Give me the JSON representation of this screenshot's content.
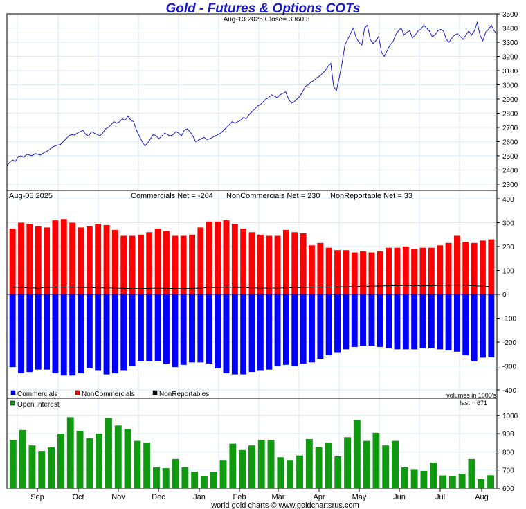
{
  "chart_data": [
    {
      "type": "line",
      "title": "Gold - Futures & Options COTs",
      "subtitle": "Aug-13  2025   Close= 3360.3",
      "ylim": [
        2280,
        3500
      ],
      "y_ticks": [
        2300,
        2400,
        2500,
        2600,
        2700,
        2800,
        2900,
        3000,
        3100,
        3200,
        3300,
        3400,
        3500
      ],
      "grid": true,
      "series": [
        {
          "color": "#1a1acc",
          "values": [
            2430,
            2455,
            2470,
            2460,
            2495,
            2500,
            2490,
            2510,
            2505,
            2500,
            2515,
            2510,
            2505,
            2520,
            2530,
            2540,
            2560,
            2570,
            2575,
            2580,
            2600,
            2620,
            2640,
            2650,
            2645,
            2660,
            2670,
            2680,
            2650,
            2640,
            2670,
            2660,
            2650,
            2640,
            2660,
            2690,
            2700,
            2720,
            2740,
            2730,
            2740,
            2760,
            2750,
            2780,
            2750,
            2740,
            2680,
            2640,
            2600,
            2570,
            2590,
            2620,
            2650,
            2640,
            2620,
            2640,
            2660,
            2650,
            2640,
            2650,
            2670,
            2660,
            2640,
            2680,
            2690,
            2670,
            2640,
            2600,
            2610,
            2620,
            2630,
            2615,
            2620,
            2630,
            2640,
            2650,
            2660,
            2680,
            2700,
            2720,
            2740,
            2730,
            2740,
            2750,
            2770,
            2760,
            2790,
            2810,
            2830,
            2850,
            2860,
            2880,
            2900,
            2910,
            2930,
            2920,
            2910,
            2930,
            2940,
            2950,
            2900,
            2870,
            2880,
            2900,
            2920,
            2950,
            2990,
            3000,
            3020,
            3030,
            3050,
            3060,
            3080,
            3100,
            3130,
            3150,
            2990,
            2960,
            3050,
            3150,
            3280,
            3320,
            3360,
            3400,
            3330,
            3300,
            3280,
            3400,
            3420,
            3320,
            3290,
            3310,
            3340,
            3230,
            3200,
            3240,
            3280,
            3300,
            3350,
            3380,
            3400,
            3350,
            3370,
            3380,
            3330,
            3350,
            3380,
            3390,
            3420,
            3400,
            3380,
            3340,
            3350,
            3380,
            3390,
            3380,
            3320,
            3300,
            3330,
            3350,
            3360,
            3340,
            3320,
            3350,
            3380,
            3350,
            3380,
            3440,
            3350,
            3310,
            3370,
            3390,
            3420,
            3380,
            3360
          ]
        }
      ]
    },
    {
      "type": "bar",
      "header_left": "Aug-05  2025",
      "header_labels": [
        "Commercials Net = -264",
        "NonCommercials Net = 230",
        "NonReportable Net = 33"
      ],
      "ylim": [
        -400,
        400
      ],
      "y_ticks": [
        -400,
        -300,
        -200,
        -100,
        0,
        100,
        200,
        300,
        400
      ],
      "grid": true,
      "legend_position": "bottom-left",
      "footnote": "volumes in 1000's",
      "series": [
        {
          "name": "Commercials",
          "color": "#0000ff",
          "values": [
            -305,
            -330,
            -325,
            -315,
            -315,
            -330,
            -340,
            -340,
            -330,
            -310,
            -320,
            -335,
            -330,
            -320,
            -300,
            -280,
            -280,
            -280,
            -290,
            -305,
            -295,
            -285,
            -285,
            -290,
            -310,
            -330,
            -335,
            -335,
            -325,
            -320,
            -315,
            -300,
            -295,
            -300,
            -290,
            -285,
            -270,
            -255,
            -245,
            -230,
            -220,
            -215,
            -215,
            -220,
            -225,
            -230,
            -230,
            -230,
            -225,
            -225,
            -230,
            -235,
            -240,
            -255,
            -280,
            -265,
            -264
          ]
        },
        {
          "name": "NonCommercials",
          "color": "#ff0000",
          "values": [
            275,
            300,
            295,
            285,
            280,
            310,
            315,
            300,
            280,
            285,
            295,
            290,
            270,
            245,
            245,
            250,
            260,
            275,
            265,
            245,
            245,
            250,
            280,
            305,
            305,
            310,
            295,
            275,
            260,
            250,
            245,
            245,
            270,
            260,
            255,
            205,
            215,
            195,
            185,
            185,
            175,
            180,
            175,
            180,
            195,
            195,
            200,
            190,
            195,
            195,
            205,
            215,
            245,
            220,
            215,
            225,
            230
          ]
        },
        {
          "name": "NonReportables",
          "color": "#000000",
          "values": [
            30,
            28,
            27,
            26,
            28,
            30,
            30,
            30,
            29,
            28,
            27,
            27,
            26,
            25,
            24,
            24,
            25,
            26,
            25,
            24,
            24,
            25,
            26,
            28,
            28,
            30,
            29,
            28,
            27,
            26,
            26,
            26,
            27,
            28,
            28,
            30,
            30,
            30,
            31,
            32,
            33,
            34,
            34,
            35,
            36,
            37,
            37,
            36,
            36,
            36,
            38,
            38,
            39,
            38,
            36,
            34,
            33
          ]
        }
      ]
    },
    {
      "type": "bar",
      "ylim": [
        600,
        1060
      ],
      "y_ticks": [
        600,
        700,
        800,
        900,
        1000
      ],
      "grid": true,
      "legend_position": "top-left",
      "last_label": "last = 671",
      "x_tick_labels": [
        "Sep",
        "Oct",
        "Nov",
        "Dec",
        "Jan",
        "Feb",
        "Mar",
        "Apr",
        "May",
        "Jun",
        "Jul",
        "Aug"
      ],
      "series": [
        {
          "name": "Open Interest",
          "color": "#119911",
          "values": [
            865,
            920,
            835,
            805,
            825,
            900,
            990,
            915,
            875,
            900,
            985,
            945,
            925,
            860,
            850,
            715,
            710,
            760,
            715,
            690,
            665,
            690,
            755,
            845,
            810,
            835,
            865,
            865,
            770,
            755,
            780,
            870,
            825,
            850,
            775,
            880,
            975,
            860,
            905,
            835,
            860,
            715,
            705,
            695,
            740,
            670,
            665,
            680,
            760,
            650,
            671
          ]
        }
      ]
    }
  ],
  "footer": "world gold charts © www.goldchartsrus.com"
}
